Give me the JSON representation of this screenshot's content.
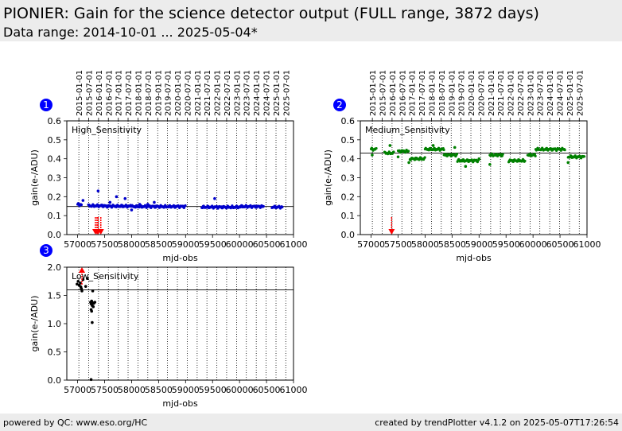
{
  "header": {
    "title": "PIONIER: Gain for the science detector output (FULL range, 3872 days)",
    "subtitle": "Data range: 2014-10-01 ... 2025-05-04*"
  },
  "footer": {
    "left": "powered by QC: www.eso.org/HC",
    "right": "created by trendPlotter v4.1.2 on 2025-05-07T17:26:54"
  },
  "colors": {
    "high": "#0000cc",
    "medium": "#008000",
    "low": "#000000",
    "outlier": "#ff0000",
    "badge": "#0000ff"
  },
  "chart_data": [
    {
      "type": "scatter",
      "panel": "1",
      "label": "High_Sensitivity",
      "xlabel": "mjd-obs",
      "ylabel": "gain(e-/ADU)",
      "xlim": [
        56800,
        61000
      ],
      "ylim": [
        0,
        0.6
      ],
      "yticks": [
        0.0,
        0.1,
        0.2,
        0.3,
        0.4,
        0.5,
        0.6
      ],
      "xticks": [
        57000,
        57500,
        58000,
        58500,
        59000,
        59500,
        60000,
        60500,
        61000
      ],
      "date_ticks": [
        "2015-01-01",
        "2015-07-01",
        "2016-01-01",
        "2016-07-01",
        "2017-01-01",
        "2017-07-01",
        "2018-01-01",
        "2018-07-01",
        "2019-01-01",
        "2019-07-01",
        "2020-01-01",
        "2020-07-01",
        "2021-01-01",
        "2021-07-01",
        "2022-01-01",
        "2022-07-01",
        "2023-01-01",
        "2023-07-01",
        "2024-01-01",
        "2024-07-01",
        "2025-01-01",
        "2025-07-01"
      ],
      "reference_line": 0.148,
      "segments": [
        {
          "x": [
            57000,
            57080
          ],
          "y": 0.158
        },
        {
          "x": [
            57200,
            57500
          ],
          "y": 0.152
        },
        {
          "x": [
            57500,
            58000
          ],
          "y": 0.15
        },
        {
          "x": [
            58000,
            58600
          ],
          "y": 0.148
        },
        {
          "x": [
            58600,
            59000
          ],
          "y": 0.148
        },
        {
          "x": [
            59300,
            60000
          ],
          "y": 0.145
        },
        {
          "x": [
            60000,
            60450
          ],
          "y": 0.148
        },
        {
          "x": [
            60600,
            60800
          ],
          "y": 0.145
        }
      ],
      "points": [
        [
          57030,
          0.16
        ],
        [
          57100,
          0.18
        ],
        [
          57380,
          0.23
        ],
        [
          57720,
          0.2
        ],
        [
          57880,
          0.19
        ],
        [
          58000,
          0.13
        ],
        [
          58150,
          0.16
        ],
        [
          58420,
          0.17
        ],
        [
          59540,
          0.19
        ],
        [
          57600,
          0.17
        ],
        [
          58300,
          0.16
        ]
      ],
      "outlier_arrows": [
        [
          57330,
          "down"
        ],
        [
          57360,
          "down"
        ],
        [
          57380,
          "down"
        ],
        [
          57430,
          "down"
        ]
      ]
    },
    {
      "type": "scatter",
      "panel": "2",
      "label": "Medium_Sensitivity",
      "xlabel": "mjd-obs",
      "ylabel": "gain(e-/ADU)",
      "xlim": [
        56800,
        61000
      ],
      "ylim": [
        0,
        0.6
      ],
      "yticks": [
        0.0,
        0.1,
        0.2,
        0.3,
        0.4,
        0.5,
        0.6
      ],
      "xticks": [
        57000,
        57500,
        58000,
        58500,
        59000,
        59500,
        60000,
        60500,
        61000
      ],
      "date_ticks": [
        "2015-01-01",
        "2015-07-01",
        "2016-01-01",
        "2016-07-01",
        "2017-01-01",
        "2017-07-01",
        "2018-01-01",
        "2018-07-01",
        "2019-01-01",
        "2019-07-01",
        "2020-01-01",
        "2020-07-01",
        "2021-01-01",
        "2021-07-01",
        "2022-01-01",
        "2022-07-01",
        "2023-01-01",
        "2023-07-01",
        "2024-01-01",
        "2024-07-01",
        "2025-01-01",
        "2025-07-01"
      ],
      "reference_line": 0.43,
      "segments": [
        {
          "x": [
            57000,
            57100
          ],
          "y": 0.45
        },
        {
          "x": [
            57250,
            57420
          ],
          "y": 0.43
        },
        {
          "x": [
            57500,
            57700
          ],
          "y": 0.44
        },
        {
          "x": [
            57720,
            58000
          ],
          "y": 0.4
        },
        {
          "x": [
            58000,
            58350
          ],
          "y": 0.45
        },
        {
          "x": [
            58350,
            58600
          ],
          "y": 0.42
        },
        {
          "x": [
            58600,
            59000
          ],
          "y": 0.39
        },
        {
          "x": [
            59200,
            59450
          ],
          "y": 0.42
        },
        {
          "x": [
            59550,
            59850
          ],
          "y": 0.39
        },
        {
          "x": [
            59900,
            60050
          ],
          "y": 0.42
        },
        {
          "x": [
            60050,
            60600
          ],
          "y": 0.45
        },
        {
          "x": [
            60650,
            60950
          ],
          "y": 0.41
        }
      ],
      "points": [
        [
          57020,
          0.42
        ],
        [
          57350,
          0.47
        ],
        [
          57500,
          0.41
        ],
        [
          57700,
          0.38
        ],
        [
          58150,
          0.47
        ],
        [
          58550,
          0.46
        ],
        [
          58750,
          0.36
        ],
        [
          59000,
          0.4
        ],
        [
          59200,
          0.37
        ],
        [
          60650,
          0.38
        ]
      ],
      "outlier_arrows": [
        [
          57380,
          "down"
        ]
      ]
    },
    {
      "type": "scatter",
      "panel": "3",
      "label": "Low_Sensitivity",
      "xlabel": "mjd-obs",
      "ylabel": "gain(e-/ADU)",
      "xlim": [
        56800,
        61000
      ],
      "ylim": [
        0,
        2.0
      ],
      "yticks": [
        0.0,
        0.5,
        1.0,
        1.5,
        2.0
      ],
      "xticks": [
        57000,
        57500,
        58000,
        58500,
        59000,
        59500,
        60000,
        60500,
        61000
      ],
      "reference_line": 1.6,
      "points": [
        [
          56990,
          1.7
        ],
        [
          57010,
          1.75
        ],
        [
          57030,
          1.68
        ],
        [
          57050,
          1.72
        ],
        [
          57060,
          1.65
        ],
        [
          57070,
          1.62
        ],
        [
          57080,
          1.58
        ],
        [
          57100,
          1.78
        ],
        [
          57150,
          1.66
        ],
        [
          57180,
          1.8
        ],
        [
          57240,
          1.38
        ],
        [
          57250,
          1.35
        ],
        [
          57260,
          1.4
        ],
        [
          57270,
          1.32
        ],
        [
          57280,
          1.37
        ],
        [
          57290,
          1.3
        ],
        [
          57300,
          1.36
        ],
        [
          57250,
          1.25
        ],
        [
          57260,
          1.22
        ],
        [
          57280,
          1.58
        ],
        [
          57270,
          1.02
        ],
        [
          57320,
          1.38
        ],
        [
          57250,
          0.01
        ]
      ],
      "outlier_arrows": [
        [
          57080,
          "up"
        ]
      ]
    }
  ]
}
